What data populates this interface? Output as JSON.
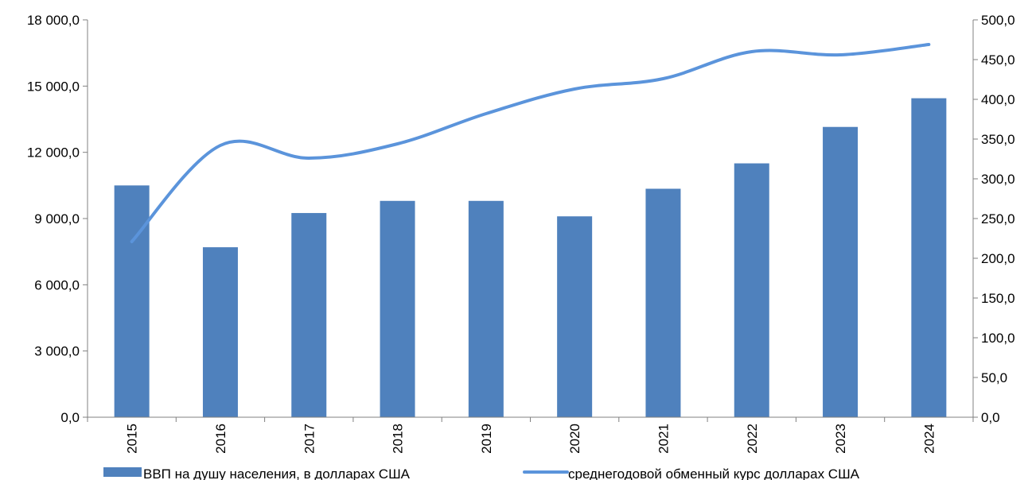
{
  "chart_data": {
    "type": "bar",
    "categories": [
      "2015",
      "2016",
      "2017",
      "2018",
      "2019",
      "2020",
      "2021",
      "2022",
      "2023",
      "2024"
    ],
    "series": [
      {
        "name": "ВВП на душу населения, в долларах США",
        "kind": "bar",
        "axis": "left",
        "color": "#4f81bd",
        "values": [
          10500,
          7700,
          9250,
          9800,
          9800,
          9100,
          10350,
          11500,
          13150,
          14450
        ]
      },
      {
        "name": "среднегодовой обменный курс долларах США",
        "kind": "line",
        "axis": "right",
        "color": "#5b94db",
        "smooth": true,
        "values": [
          221,
          342,
          326,
          344,
          382,
          413,
          426,
          460,
          456,
          469
        ]
      }
    ],
    "y_left": {
      "ylim": [
        0,
        18000
      ],
      "ticks": [
        0,
        3000,
        6000,
        9000,
        12000,
        15000,
        18000
      ],
      "tick_labels": [
        "0,0",
        "3 000,0",
        "6 000,0",
        "9 000,0",
        "12 000,0",
        "15 000,0",
        "18 000,0"
      ]
    },
    "y_right": {
      "ylim": [
        0,
        500
      ],
      "ticks": [
        0,
        50,
        100,
        150,
        200,
        250,
        300,
        350,
        400,
        450,
        500
      ],
      "tick_labels": [
        "0,0",
        "50,0",
        "100,0",
        "150,0",
        "200,0",
        "250,0",
        "300,0",
        "350,0",
        "400,0",
        "450,0",
        "500,0"
      ]
    },
    "grid": false,
    "legend_position": "bottom",
    "title": "",
    "xlabel": "",
    "ylabel": ""
  }
}
